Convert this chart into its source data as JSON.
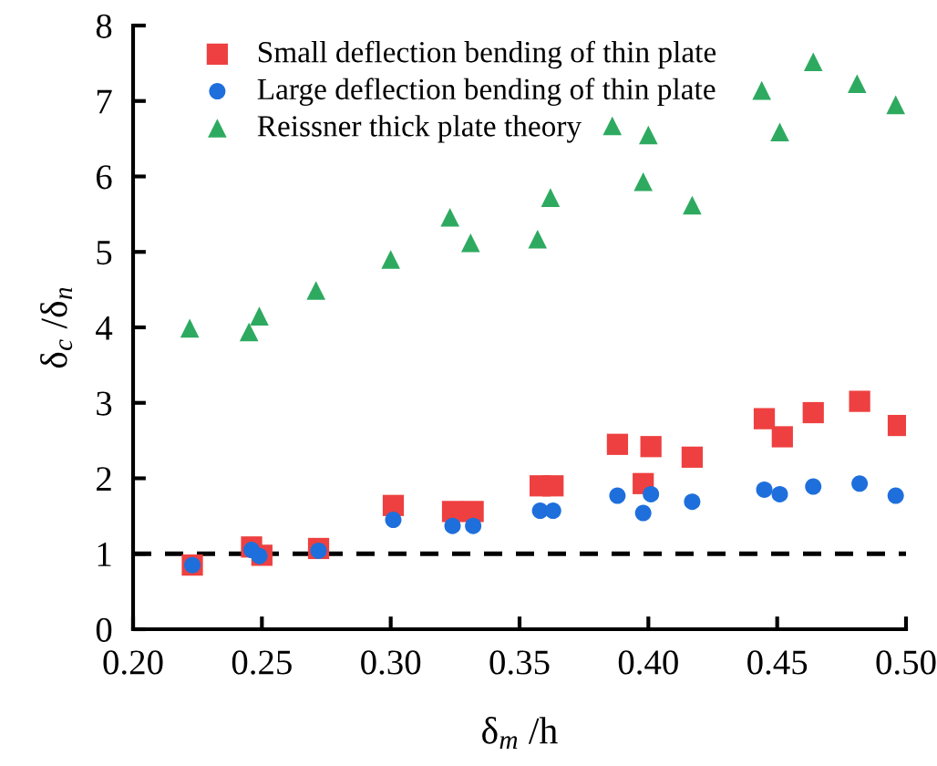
{
  "chart_data": {
    "type": "scatter",
    "xlabel": "δ$_{m}$ /h",
    "ylabel": "δ$_{c}$ /δ$_{n}$",
    "xlim": [
      0.2,
      0.5
    ],
    "xticks": [
      {
        "value": 0.2,
        "label": "0.20"
      },
      {
        "value": 0.25,
        "label": "0.25"
      },
      {
        "value": 0.3,
        "label": "0.30"
      },
      {
        "value": 0.35,
        "label": "0.35"
      },
      {
        "value": 0.4,
        "label": "0.40"
      },
      {
        "value": 0.45,
        "label": "0.45"
      },
      {
        "value": 0.5,
        "label": "0.50"
      }
    ],
    "ylim": [
      0,
      8
    ],
    "yticks": [
      0,
      1,
      2,
      3,
      4,
      5,
      6,
      7,
      8
    ],
    "grid": false,
    "legend": "top left",
    "ref_lines": [
      {
        "axis": "y",
        "value": 1,
        "color": "#000000",
        "line_style": "dashed"
      }
    ],
    "series": [
      {
        "name": "Small deflection bending of thin plate",
        "color": "#ee4040",
        "marker": "square",
        "x": [
          0.223,
          0.246,
          0.25,
          0.272,
          0.301,
          0.324,
          0.332,
          0.358,
          0.363,
          0.388,
          0.398,
          0.401,
          0.417,
          0.445,
          0.452,
          0.464,
          0.482,
          0.497
        ],
        "values": [
          0.85,
          1.09,
          0.98,
          1.07,
          1.64,
          1.56,
          1.56,
          1.9,
          1.9,
          2.45,
          1.93,
          2.42,
          2.28,
          2.79,
          2.55,
          2.87,
          3.02,
          2.7
        ]
      },
      {
        "name": "Large deflection bending of thin plate",
        "color": "#1e6fdc",
        "marker": "circle",
        "x": [
          0.223,
          0.246,
          0.249,
          0.272,
          0.301,
          0.324,
          0.332,
          0.358,
          0.363,
          0.388,
          0.398,
          0.401,
          0.417,
          0.445,
          0.451,
          0.464,
          0.482,
          0.496
        ],
        "values": [
          0.85,
          1.05,
          0.97,
          1.04,
          1.45,
          1.37,
          1.37,
          1.57,
          1.57,
          1.77,
          1.54,
          1.79,
          1.69,
          1.85,
          1.79,
          1.89,
          1.93,
          1.77
        ]
      },
      {
        "name": "Reissner thick plate theory",
        "color": "#2eaa60",
        "marker": "triangle",
        "x": [
          0.222,
          0.245,
          0.249,
          0.271,
          0.3,
          0.323,
          0.331,
          0.357,
          0.362,
          0.386,
          0.398,
          0.4,
          0.417,
          0.444,
          0.451,
          0.464,
          0.481,
          0.496
        ],
        "values": [
          3.99,
          3.94,
          4.15,
          4.49,
          4.9,
          5.46,
          5.12,
          5.17,
          5.72,
          6.67,
          5.93,
          6.55,
          5.62,
          7.14,
          6.59,
          7.52,
          7.23,
          6.95
        ]
      }
    ]
  }
}
